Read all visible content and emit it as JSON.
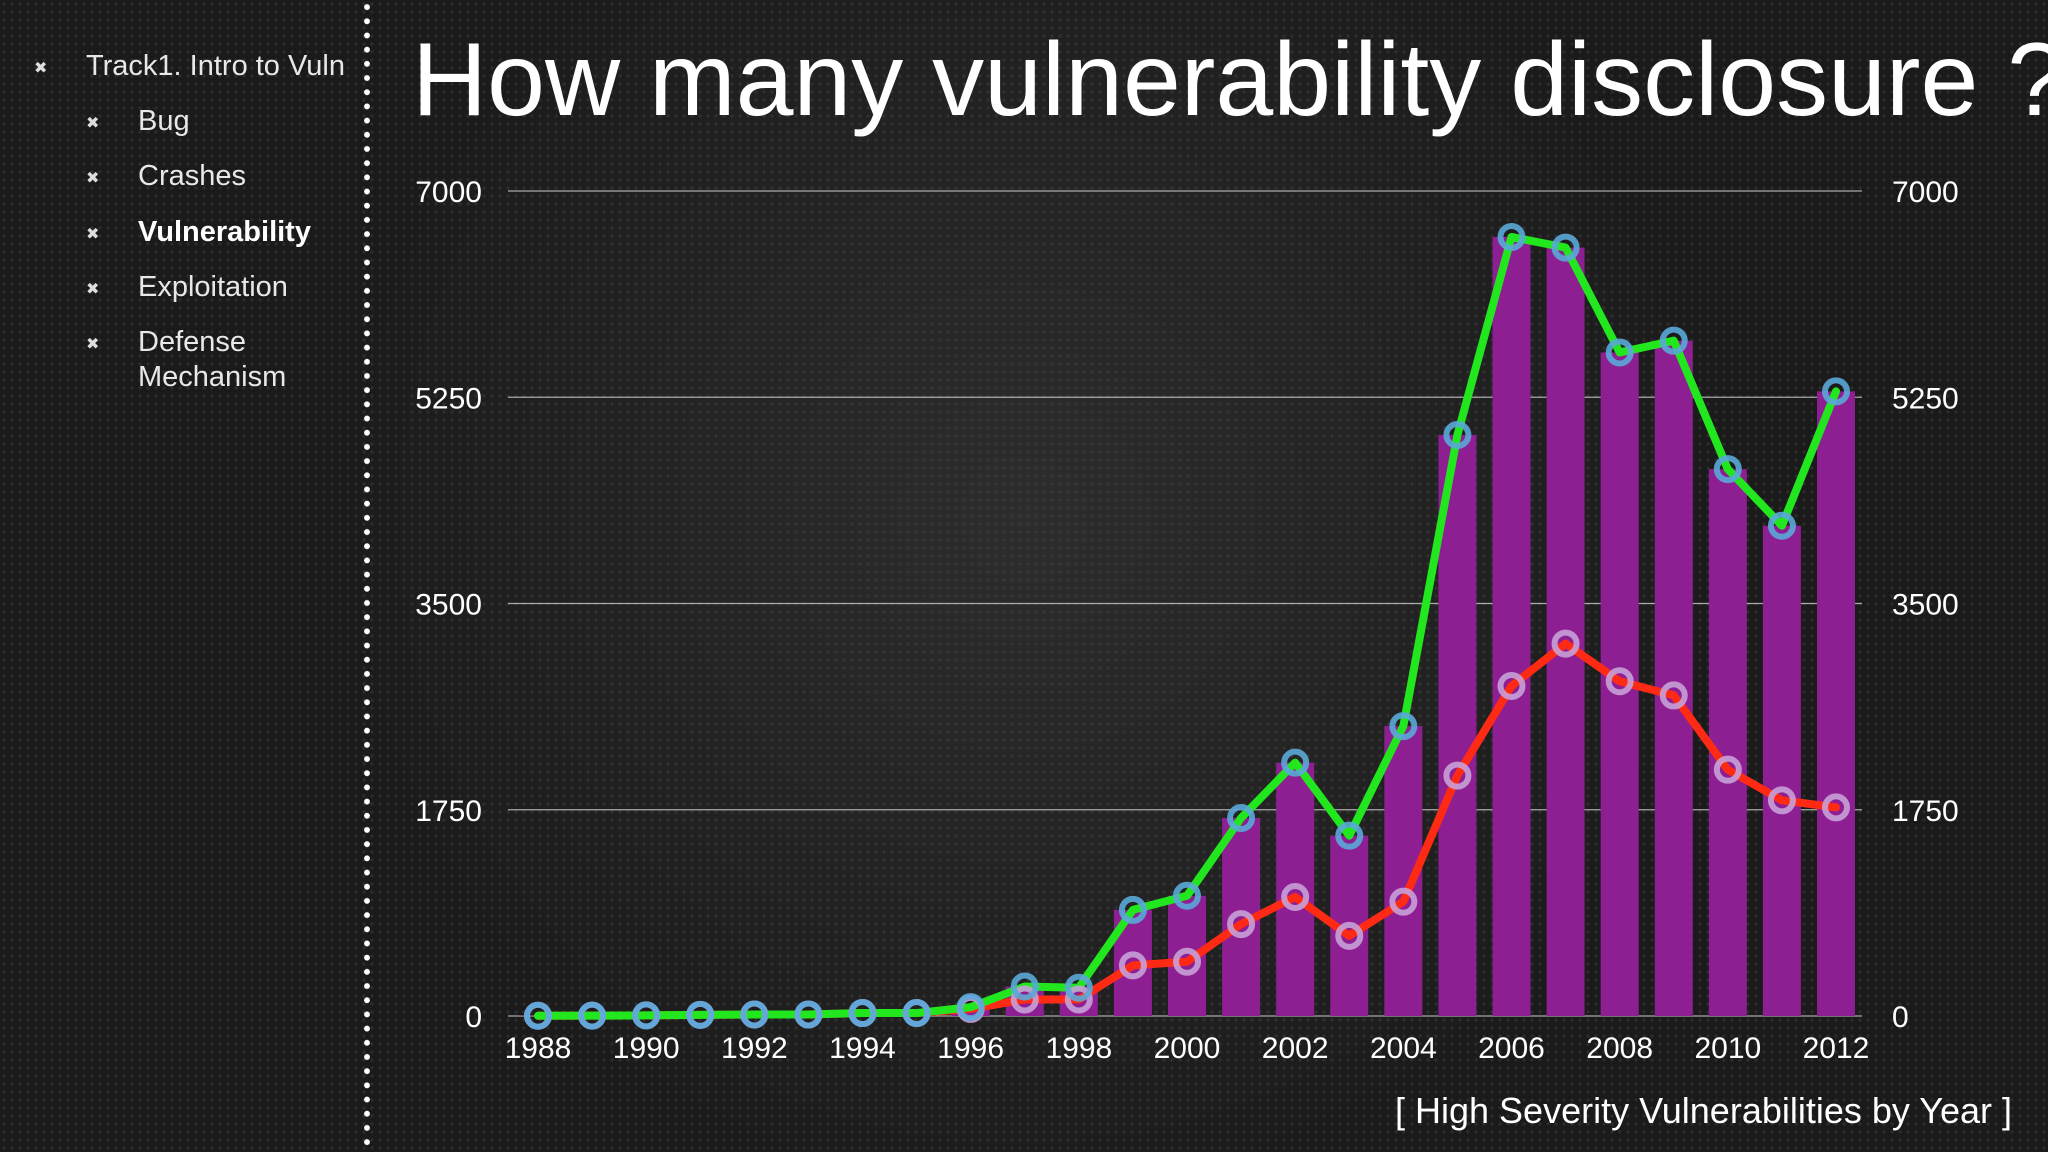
{
  "sidebar": {
    "items": [
      {
        "label": "Track1. Intro to Vuln",
        "level": 0,
        "active": false
      },
      {
        "label": "Bug",
        "level": 1,
        "active": false
      },
      {
        "label": "Crashes",
        "level": 1,
        "active": false
      },
      {
        "label": "Vulnerability",
        "level": 1,
        "active": true
      },
      {
        "label": "Exploitation",
        "level": 1,
        "active": false
      },
      {
        "label": "Defense Mechanism",
        "level": 1,
        "active": false
      }
    ],
    "bullet_glyph": "✖"
  },
  "slide": {
    "title": "How many vulnerability disclosure ?",
    "caption": "[ High Severity Vulnerabilities by Year ]"
  },
  "chart_data": {
    "type": "bar",
    "x": [
      1988,
      1989,
      1990,
      1991,
      1992,
      1993,
      1994,
      1995,
      1996,
      1997,
      1998,
      1999,
      2000,
      2001,
      2002,
      2003,
      2004,
      2005,
      2006,
      2007,
      2008,
      2009,
      2010,
      2011,
      2012
    ],
    "x_tick_labels": [
      "1988",
      "1990",
      "1992",
      "1994",
      "1996",
      "1998",
      "2000",
      "2002",
      "2004",
      "2006",
      "2008",
      "2010",
      "2012"
    ],
    "y_ticks": [
      0,
      1750,
      3500,
      5250,
      7000
    ],
    "ylim": [
      0,
      7000
    ],
    "grid": true,
    "series": [
      {
        "type": "bar",
        "color": "#8e1f92",
        "values": [
          2,
          3,
          5,
          10,
          13,
          13,
          25,
          25,
          75,
          250,
          250,
          900,
          1020,
          1680,
          2150,
          1530,
          2460,
          4930,
          6610,
          6520,
          5630,
          5730,
          4640,
          4160,
          5300
        ]
      },
      {
        "type": "line",
        "color": "#22e61e",
        "marker_color": "#5aa8d8",
        "values": [
          2,
          3,
          5,
          10,
          13,
          13,
          25,
          25,
          75,
          250,
          240,
          900,
          1020,
          1680,
          2150,
          1530,
          2460,
          4930,
          6610,
          6520,
          5630,
          5730,
          4640,
          4160,
          5300
        ]
      },
      {
        "type": "line",
        "color": "#ff2a14",
        "marker_color": "#c8a0d8",
        "values": [
          2,
          3,
          5,
          10,
          13,
          13,
          25,
          25,
          60,
          140,
          140,
          430,
          460,
          780,
          1010,
          680,
          970,
          2040,
          2800,
          3160,
          2840,
          2720,
          2090,
          1830,
          1770
        ]
      }
    ]
  }
}
